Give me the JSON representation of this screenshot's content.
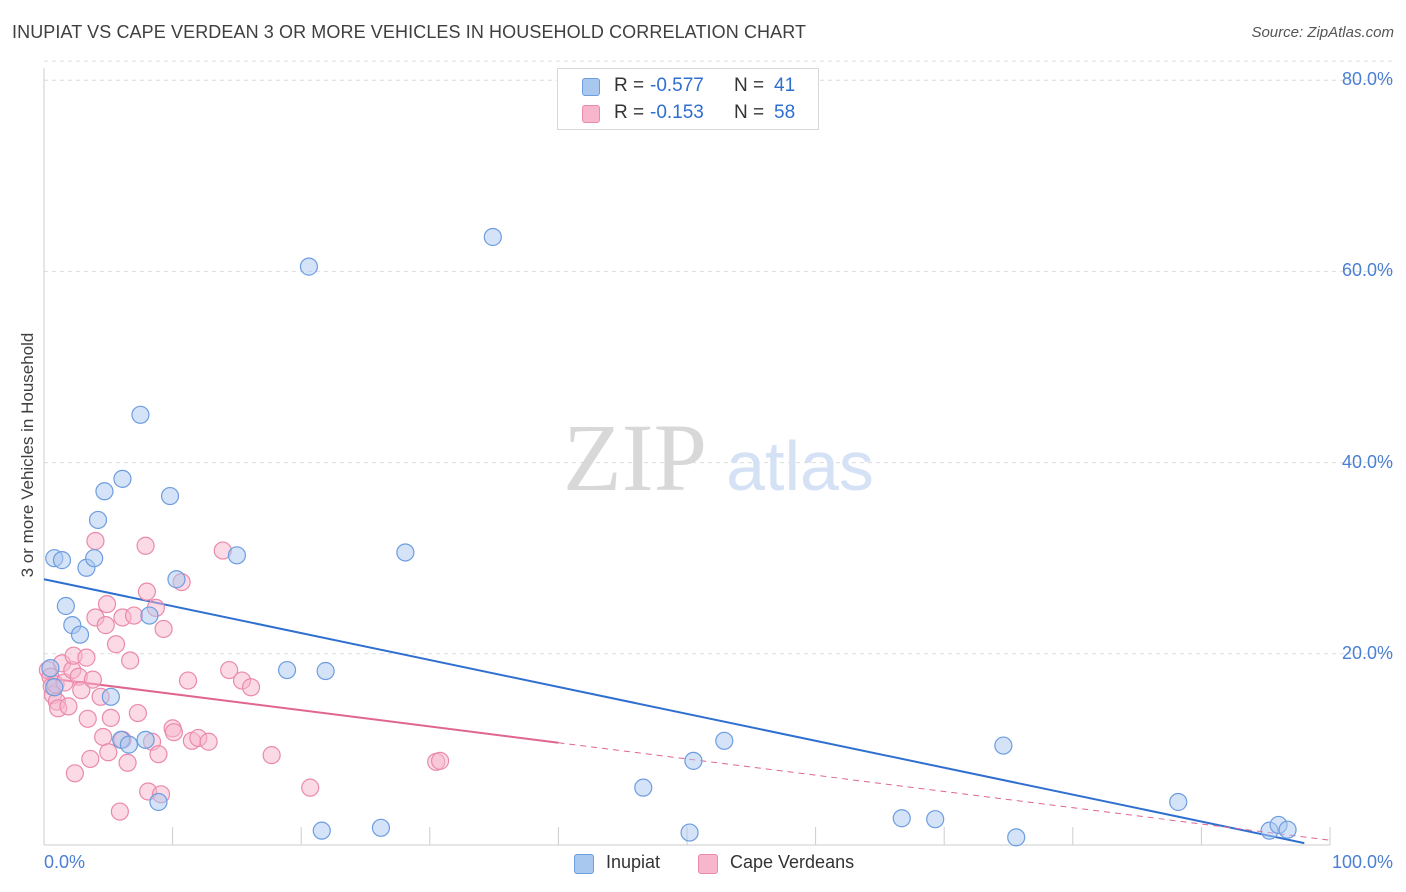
{
  "title": "INUPIAT VS CAPE VERDEAN 3 OR MORE VEHICLES IN HOUSEHOLD CORRELATION CHART",
  "source": "Source: ZipAtlas.com",
  "watermark": {
    "zip": "ZIP",
    "atlas": "atlas"
  },
  "colors": {
    "inupiat_fill": "#a9c8f0",
    "inupiat_stroke": "#6d9de0",
    "inupiat_line": "#2f6fd0",
    "cape_fill": "#f7b6cb",
    "cape_stroke": "#ea8aab",
    "cape_line": "#e06590",
    "tick_label": "#4a7fd4"
  },
  "stats": {
    "inupiat": {
      "r_label": "R =",
      "r_value": "-0.577",
      "n_label": "N =",
      "n_value": "41"
    },
    "cape": {
      "r_label": "R =",
      "r_value": "-0.153",
      "n_label": "N =",
      "n_value": "58"
    }
  },
  "legend": {
    "inupiat": "Inupiat",
    "cape": "Cape Verdeans"
  },
  "chart_data": {
    "type": "scatter",
    "title": "INUPIAT VS CAPE VERDEAN 3 OR MORE VEHICLES IN HOUSEHOLD CORRELATION CHART",
    "xlabel": "",
    "ylabel": "3 or more Vehicles in Household",
    "xlim": [
      0,
      100
    ],
    "ylim": [
      0,
      82
    ],
    "x_tick_labels": [
      "0.0%",
      "100.0%"
    ],
    "y_ticks": [
      20,
      40,
      60,
      80
    ],
    "y_tick_labels": [
      "20.0%",
      "40.0%",
      "60.0%",
      "80.0%"
    ],
    "grid": true,
    "legend_position": "bottom-center",
    "series": [
      {
        "name": "Inupiat",
        "r": -0.577,
        "n": 41,
        "trend": {
          "x": [
            0,
            98
          ],
          "y": [
            27.8,
            0.2
          ],
          "dashed_to": 98
        },
        "points": [
          [
            0.5,
            18.5
          ],
          [
            0.8,
            16.5
          ],
          [
            0.8,
            30
          ],
          [
            1.4,
            29.8
          ],
          [
            1.7,
            25
          ],
          [
            2.2,
            23
          ],
          [
            2.8,
            22
          ],
          [
            3.3,
            29
          ],
          [
            3.9,
            30
          ],
          [
            4.2,
            34
          ],
          [
            4.7,
            37
          ],
          [
            5.2,
            15.5
          ],
          [
            6.0,
            11
          ],
          [
            6.1,
            38.3
          ],
          [
            6.6,
            10.5
          ],
          [
            7.5,
            45
          ],
          [
            7.9,
            11
          ],
          [
            8.2,
            24
          ],
          [
            8.9,
            4.5
          ],
          [
            9.8,
            36.5
          ],
          [
            10.3,
            27.8
          ],
          [
            15.0,
            30.3
          ],
          [
            18.9,
            18.3
          ],
          [
            20.6,
            60.5
          ],
          [
            21.6,
            1.5
          ],
          [
            21.9,
            18.2
          ],
          [
            26.2,
            1.8
          ],
          [
            28.1,
            30.6
          ],
          [
            34.9,
            63.6
          ],
          [
            46.6,
            6
          ],
          [
            50.2,
            1.3
          ],
          [
            50.5,
            8.8
          ],
          [
            52.9,
            10.9
          ],
          [
            66.7,
            2.8
          ],
          [
            69.3,
            2.7
          ],
          [
            74.6,
            10.4
          ],
          [
            75.6,
            0.8
          ],
          [
            88.2,
            4.5
          ],
          [
            95.3,
            1.5
          ],
          [
            96.0,
            2.1
          ],
          [
            96.7,
            1.6
          ]
        ]
      },
      {
        "name": "Cape Verdeans",
        "r": -0.153,
        "n": 58,
        "trend": {
          "x": [
            0,
            40
          ],
          "y": [
            17.5,
            10.7
          ],
          "dashed_to": 100,
          "dashed_end_y": 0.5
        },
        "points": [
          [
            0.3,
            18.3
          ],
          [
            0.5,
            17.6
          ],
          [
            0.6,
            16.6
          ],
          [
            0.7,
            15.7
          ],
          [
            0.9,
            16.8
          ],
          [
            1.0,
            15
          ],
          [
            1.1,
            14.3
          ],
          [
            1.4,
            19
          ],
          [
            1.6,
            17
          ],
          [
            1.9,
            14.5
          ],
          [
            2.2,
            18.3
          ],
          [
            2.3,
            19.8
          ],
          [
            2.4,
            7.5
          ],
          [
            2.7,
            17.6
          ],
          [
            2.9,
            16.2
          ],
          [
            3.3,
            19.6
          ],
          [
            3.4,
            13.2
          ],
          [
            3.6,
            9
          ],
          [
            3.8,
            17.3
          ],
          [
            4.0,
            31.8
          ],
          [
            4.0,
            23.8
          ],
          [
            4.4,
            15.5
          ],
          [
            4.6,
            11.3
          ],
          [
            4.8,
            23
          ],
          [
            4.9,
            25.2
          ],
          [
            5.0,
            9.7
          ],
          [
            5.2,
            13.3
          ],
          [
            5.6,
            21
          ],
          [
            5.9,
            3.5
          ],
          [
            6.1,
            23.8
          ],
          [
            6.1,
            11
          ],
          [
            6.5,
            8.6
          ],
          [
            6.7,
            19.3
          ],
          [
            7.0,
            24
          ],
          [
            7.3,
            13.8
          ],
          [
            7.9,
            31.3
          ],
          [
            8.0,
            26.5
          ],
          [
            8.1,
            5.6
          ],
          [
            8.4,
            10.8
          ],
          [
            8.7,
            24.8
          ],
          [
            8.9,
            9.5
          ],
          [
            9.1,
            5.3
          ],
          [
            9.3,
            22.6
          ],
          [
            10.0,
            12.2
          ],
          [
            10.1,
            11.8
          ],
          [
            10.7,
            27.5
          ],
          [
            11.2,
            17.2
          ],
          [
            11.5,
            10.9
          ],
          [
            12.0,
            11.2
          ],
          [
            12.8,
            10.8
          ],
          [
            13.9,
            30.8
          ],
          [
            14.4,
            18.3
          ],
          [
            15.4,
            17.2
          ],
          [
            16.1,
            16.5
          ],
          [
            17.7,
            9.4
          ],
          [
            20.7,
            6
          ],
          [
            30.5,
            8.7
          ],
          [
            30.8,
            8.8
          ]
        ]
      }
    ]
  }
}
